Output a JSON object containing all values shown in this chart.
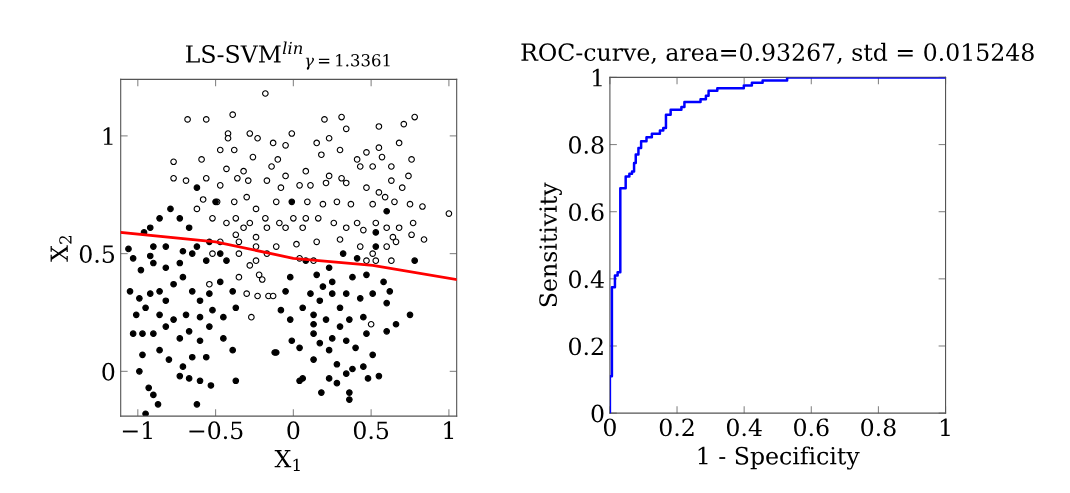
{
  "chart_data": [
    {
      "type": "scatter",
      "title": "LS-SVM$^{lin}$$_{γ=1.3361}$",
      "xlabel": "X$_{1}$",
      "ylabel": "X$_{2}$",
      "xlim": [
        -1.11,
        1.05
      ],
      "ylim": [
        -0.19,
        1.24
      ],
      "xticks": [
        {
          "value": -1,
          "label": "−1"
        },
        {
          "value": -0.5,
          "label": "−0.5"
        },
        0,
        0.5,
        1
      ],
      "yticks": [
        0,
        0.5,
        1
      ],
      "marker": "circle",
      "grid": false,
      "legend": false,
      "series": [
        {
          "color": "#ffffff",
          "x": [
            -0.18,
            -0.39,
            -0.68,
            -0.56,
            0.2,
            0.31,
            0.78,
            0.71,
            0.55,
            0.34,
            -0.42,
            -0.28,
            -0.01,
            0.23,
            -0.77,
            -0.59,
            -0.77,
            -0.69,
            -0.47,
            -0.42,
            -0.38,
            -0.23,
            -0.13,
            -0.05,
            0.15,
            0.3,
            0.47,
            0.55,
            0.68,
            0.76,
            0.57,
            0.41,
            0.18,
            -0.26,
            -0.1,
            -0.43,
            -0.32,
            -0.14,
            -0.05,
            0.08,
            0.23,
            0.31,
            0.43,
            0.51,
            0.63,
            0.74,
            0.63,
            0.7,
            -0.56,
            -0.47,
            -0.36,
            -0.29,
            -0.17,
            -0.08,
            0.04,
            0.11,
            0.21,
            0.34,
            0.47,
            0.55,
            -0.58,
            -0.62,
            -0.49,
            -0.38,
            -0.3,
            -0.24,
            -0.11,
            0.09,
            0.19,
            0.28,
            0.37,
            0.51,
            0.59,
            0.65,
            0.75,
            0.83,
            1.0,
            -0.52,
            -0.43,
            -0.37,
            -0.28,
            -0.18,
            -0.09,
            0.0,
            0.08,
            0.16,
            0.26,
            0.41,
            0.53,
            0.6,
            0.68,
            0.77,
            0.76,
            0.84,
            -0.32,
            -0.37,
            -0.24,
            -0.17,
            -0.05,
            0.06,
            0.34,
            0.45,
            0.64,
            -0.47,
            -0.35,
            -0.24,
            -0.11,
            0.02,
            0.15,
            0.3,
            0.43,
            0.51,
            0.6,
            0.66,
            -0.52,
            -0.35,
            -0.24,
            -0.17,
            0.04,
            0.13,
            0.47,
            0.53,
            0.63,
            -0.22,
            -0.2,
            -0.54,
            -0.35,
            -0.28,
            -0.3,
            -0.23,
            -0.16,
            -0.13,
            -0.27,
            0.5
          ],
          "values": [
            1.18,
            1.09,
            1.07,
            1.07,
            1.07,
            1.08,
            1.08,
            1.05,
            1.04,
            1.03,
            1.01,
            1.01,
            1.01,
            0.99,
            0.89,
            0.9,
            0.82,
            0.81,
            0.94,
            0.99,
            0.94,
            0.99,
            0.97,
            0.96,
            0.97,
            0.94,
            0.93,
            0.95,
            0.97,
            0.9,
            0.91,
            0.9,
            0.92,
            0.91,
            0.9,
            0.86,
            0.85,
            0.87,
            0.83,
            0.85,
            0.83,
            0.82,
            0.87,
            0.87,
            0.87,
            0.83,
            0.81,
            0.78,
            0.82,
            0.79,
            0.82,
            0.81,
            0.81,
            0.78,
            0.79,
            0.79,
            0.8,
            0.8,
            0.78,
            0.76,
            0.73,
            0.69,
            0.72,
            0.72,
            0.74,
            0.69,
            0.72,
            0.72,
            0.71,
            0.72,
            0.71,
            0.71,
            0.74,
            0.72,
            0.71,
            0.7,
            0.67,
            0.65,
            0.63,
            0.65,
            0.63,
            0.65,
            0.63,
            0.65,
            0.65,
            0.65,
            0.63,
            0.63,
            0.63,
            0.61,
            0.61,
            0.63,
            0.58,
            0.56,
            0.61,
            0.58,
            0.57,
            0.61,
            0.61,
            0.61,
            0.61,
            0.6,
            0.57,
            0.55,
            0.55,
            0.53,
            0.53,
            0.54,
            0.55,
            0.56,
            0.53,
            0.5,
            0.53,
            0.55,
            0.5,
            0.5,
            0.47,
            0.5,
            0.48,
            0.47,
            0.47,
            0.47,
            0.47,
            0.41,
            0.39,
            0.37,
            0.4,
            0.45,
            0.33,
            0.32,
            0.32,
            0.32,
            0.23,
            0.2
          ]
        },
        {
          "color": "#000000",
          "x": [
            -0.62,
            -0.01,
            -0.79,
            -0.86,
            -0.73,
            -0.67,
            -0.92,
            -0.96,
            -0.9,
            -1.06,
            -1.03,
            -0.92,
            -0.82,
            -0.71,
            -0.62,
            -0.54,
            -0.5,
            -0.98,
            -0.9,
            -0.82,
            -0.73,
            -0.65,
            -0.56,
            -0.47,
            -0.43,
            -1.05,
            -0.99,
            -0.92,
            -0.86,
            -0.82,
            -0.77,
            -0.71,
            -0.65,
            -0.6,
            -0.54,
            -0.47,
            -0.39,
            -0.37,
            -0.45,
            -0.52,
            -0.6,
            -0.69,
            -0.77,
            -0.86,
            -0.95,
            -1.01,
            -1.03,
            -0.97,
            -0.9,
            -0.82,
            -0.73,
            -0.67,
            -0.6,
            -0.54,
            -0.45,
            -0.39,
            -0.97,
            -0.86,
            -0.8,
            -0.71,
            -0.65,
            -0.56,
            -0.99,
            -0.73,
            -0.67,
            -0.6,
            -0.53,
            -0.37,
            -0.93,
            -0.9,
            -0.87,
            -0.95,
            -0.62,
            -0.02,
            -0.05,
            -0.08,
            -0.02,
            -0.11,
            -0.01,
            0.04,
            0.06,
            0.13,
            0.17,
            0.23,
            0.13,
            0.28,
            0.34,
            0.23,
            0.28,
            0.38,
            0.45,
            0.48,
            0.55,
            0.4,
            0.51,
            0.6,
            0.66,
            0.75,
            0.6,
            0.51,
            0.43,
            0.34,
            0.25,
            0.17,
            0.11,
            0.06,
            0.13,
            0.21,
            0.3,
            0.36,
            0.45,
            0.47,
            0.34,
            0.25,
            0.08,
            0.15,
            0.23,
            0.32,
            0.41,
            0.53,
            0.6,
            0.53,
            0.78,
            0.38,
            0.47,
            0.25,
            0.19,
            0.58,
            0.18,
            0.36,
            0.36,
            0.62,
            -0.12,
            0.04,
            0.13,
            0.3
          ],
          "values": [
            0.78,
            0.72,
            0.69,
            0.65,
            0.65,
            0.61,
            0.61,
            0.59,
            0.53,
            0.52,
            0.48,
            0.49,
            0.53,
            0.51,
            0.53,
            0.55,
            0.72,
            0.43,
            0.46,
            0.44,
            0.46,
            0.5,
            0.47,
            0.5,
            0.47,
            0.34,
            0.31,
            0.33,
            0.34,
            0.3,
            0.37,
            0.4,
            0.34,
            0.3,
            0.33,
            0.38,
            0.34,
            0.27,
            0.23,
            0.26,
            0.23,
            0.24,
            0.22,
            0.24,
            0.27,
            0.24,
            0.16,
            0.16,
            0.16,
            0.19,
            0.14,
            0.17,
            0.13,
            0.19,
            0.14,
            0.09,
            0.07,
            0.09,
            0.05,
            0.02,
            0.06,
            0.06,
            0.0,
            -0.02,
            -0.03,
            -0.04,
            -0.06,
            -0.04,
            -0.07,
            -0.1,
            -0.14,
            -0.18,
            -0.14,
            0.4,
            0.34,
            0.26,
            0.22,
            0.08,
            0.13,
            0.1,
            -0.03,
            0.16,
            0.12,
            0.09,
            0.05,
            0.03,
            -0.01,
            -0.03,
            -0.05,
            0.01,
            0.02,
            -0.03,
            -0.02,
            0.1,
            0.07,
            0.17,
            0.2,
            0.24,
            0.29,
            0.33,
            0.31,
            0.33,
            0.33,
            0.3,
            0.33,
            0.27,
            0.24,
            0.22,
            0.19,
            0.22,
            0.23,
            0.16,
            0.13,
            0.14,
            0.47,
            0.41,
            0.44,
            0.5,
            0.48,
            0.53,
            0.68,
            0.59,
            0.47,
            0.4,
            0.41,
            0.38,
            0.36,
            0.38,
            -0.09,
            -0.09,
            -0.12,
            0.34,
            0.08,
            -0.04,
            0.2,
            0.27
          ]
        },
        {
          "type": "line",
          "color": "#ff0000",
          "marker": "none",
          "x": [
            -1.11,
            -0.5,
            0,
            0.51,
            1.05
          ],
          "values": [
            0.59,
            0.55,
            0.48,
            0.45,
            0.39
          ]
        }
      ]
    },
    {
      "type": "step",
      "title": "ROC-curve, area=0.93267, std = 0.015248",
      "xlabel": "1 - Specificity",
      "ylabel": "Sensitivity",
      "xlim": [
        0,
        1
      ],
      "ylim": [
        0,
        1
      ],
      "xticks": [
        0,
        0.2,
        0.4,
        0.6,
        0.8,
        1
      ],
      "yticks": [
        0,
        0.2,
        0.4,
        0.6,
        0.8,
        1
      ],
      "grid": false,
      "legend": false,
      "marker": "none",
      "series": [
        {
          "color": "#0000ff",
          "x": [
            0,
            0,
            0.006,
            0.015,
            0.023,
            0.031,
            0.047,
            0.058,
            0.066,
            0.072,
            0.077,
            0.085,
            0.093,
            0.109,
            0.125,
            0.149,
            0.159,
            0.167,
            0.181,
            0.213,
            0.222,
            0.27,
            0.286,
            0.294,
            0.32,
            0.399,
            0.423,
            0.455,
            0.528,
            1.0
          ],
          "values": [
            0,
            0.11,
            0.375,
            0.41,
            0.42,
            0.67,
            0.705,
            0.713,
            0.72,
            0.745,
            0.77,
            0.79,
            0.81,
            0.822,
            0.832,
            0.842,
            0.849,
            0.889,
            0.904,
            0.912,
            0.927,
            0.935,
            0.945,
            0.96,
            0.968,
            0.976,
            0.984,
            0.991,
            1.0,
            1.0
          ]
        }
      ]
    }
  ]
}
